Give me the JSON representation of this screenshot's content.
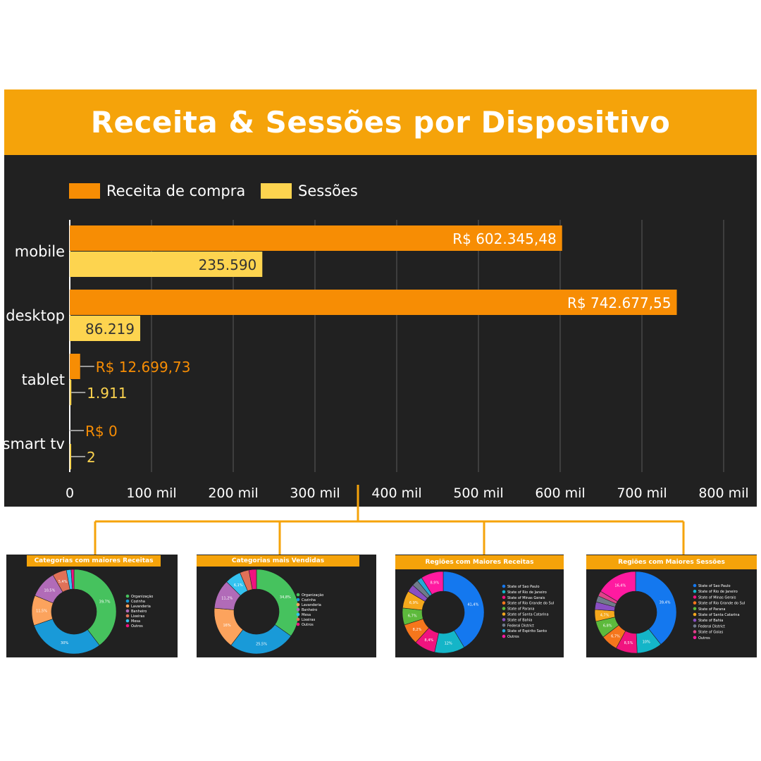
{
  "title": "Receita & Sessões por Dispositivo",
  "colors": {
    "receita": "#f78d04",
    "sessoes": "#fdd44f",
    "header": "#f5a30a",
    "panel": "#212121",
    "connector": "#f5a30a"
  },
  "chart_data": [
    {
      "type": "bar",
      "orientation": "horizontal",
      "title": "Receita & Sessões por Dispositivo",
      "legend_position": "top-left",
      "grid": true,
      "categories": [
        "mobile",
        "desktop",
        "tablet",
        "smart tv"
      ],
      "xlim": [
        0,
        800000
      ],
      "x_ticks": [
        0,
        100000,
        200000,
        300000,
        400000,
        500000,
        600000,
        700000,
        800000
      ],
      "x_tick_labels": [
        "0",
        "100 mil",
        "200 mil",
        "300 mil",
        "400 mil",
        "500 mil",
        "600 mil",
        "700 mil",
        "800 mil"
      ],
      "series": [
        {
          "name": "Receita de compra",
          "color": "#f78d04",
          "values": [
            602345.48,
            742677.55,
            12699.73,
            0
          ],
          "labels": [
            "R$ 602.345,48",
            "R$ 742.677,55",
            "R$ 12.699,73",
            "R$ 0"
          ]
        },
        {
          "name": "Sessões",
          "color": "#fdd44f",
          "values": [
            235590,
            86219,
            1911,
            2
          ],
          "labels": [
            "235.590",
            "86.219",
            "1.911",
            "2"
          ]
        }
      ]
    },
    {
      "type": "pie",
      "title": "Categorias com maiores Receitas",
      "legend": [
        "Organização",
        "Cozinha",
        "Lavanderia",
        "Banheiro",
        "Lixeiras",
        "Mesa",
        "Outros"
      ],
      "values": [
        39.7,
        30,
        11.5,
        10.5,
        5.4,
        1.8,
        1.1
      ],
      "labels": [
        "39,7%",
        "30%",
        "11,5%",
        "10,5%",
        "5,4%",
        "",
        ""
      ],
      "colors": [
        "#46c25e",
        "#199ad8",
        "#fca35d",
        "#b16bb8",
        "#e07158",
        "#34c2f0",
        "#f0137f"
      ]
    },
    {
      "type": "pie",
      "title": "Categorias mais Vendidas",
      "legend": [
        "Organização",
        "Cozinha",
        "Lavanderia",
        "Banheiro",
        "Mesa",
        "Lixeiras",
        "Outros"
      ],
      "values": [
        34.8,
        25.5,
        16,
        11.2,
        6.1,
        3.5,
        2.9
      ],
      "labels": [
        "34,8%",
        "25,5%",
        "16%",
        "11,2%",
        "6,1%",
        "",
        ""
      ],
      "colors": [
        "#46c25e",
        "#199ad8",
        "#fca35d",
        "#b16bb8",
        "#34c2f0",
        "#e07158",
        "#f0137f"
      ]
    },
    {
      "type": "pie",
      "title": "Regiões com Maiores Receitas",
      "legend": [
        "State of Sao Paulo",
        "State of Rio de Janeiro",
        "State of Minas Gerais",
        "State of Rio Grande do Sul",
        "State of Parana",
        "State of Santa Catarina",
        "State of Bahia",
        "Federal District",
        "State of Espirito Santo",
        "Outros"
      ],
      "values": [
        41.4,
        12,
        8.4,
        8.2,
        6.7,
        6.9,
        3,
        2.5,
        2,
        8.9
      ],
      "labels": [
        "41,4%",
        "12%",
        "8,4%",
        "8,2%",
        "6,7%",
        "6,9%",
        "",
        "",
        "",
        "8,9%"
      ],
      "colors": [
        "#1478ef",
        "#14b5c8",
        "#f0137f",
        "#f5761c",
        "#5dba3c",
        "#f5a81c",
        "#8a4fc2",
        "#707b8a",
        "#24a7d6",
        "#ff1aa0"
      ]
    },
    {
      "type": "pie",
      "title": "Regiões com Maiores Sessões",
      "legend": [
        "State of Sao Paulo",
        "State of Rio de Janeiro",
        "State of Minas Gerais",
        "State of Rio Grande do Sul",
        "State of Parana",
        "State of Santa Catarina",
        "State of Bahia",
        "Federal District",
        "State of Goias",
        "Outros"
      ],
      "values": [
        39.4,
        10,
        8.5,
        6.7,
        6.8,
        4.7,
        3,
        2.5,
        2,
        16.4
      ],
      "labels": [
        "39,4%",
        "10%",
        "8,5%",
        "6,7%",
        "6,8%",
        "4,7%",
        "",
        "",
        "",
        "16,4%"
      ],
      "colors": [
        "#1478ef",
        "#14b5c8",
        "#f0137f",
        "#f5761c",
        "#5dba3c",
        "#f5a81c",
        "#8a4fc2",
        "#707b8a",
        "#e0418a",
        "#ff1aa0"
      ]
    }
  ]
}
